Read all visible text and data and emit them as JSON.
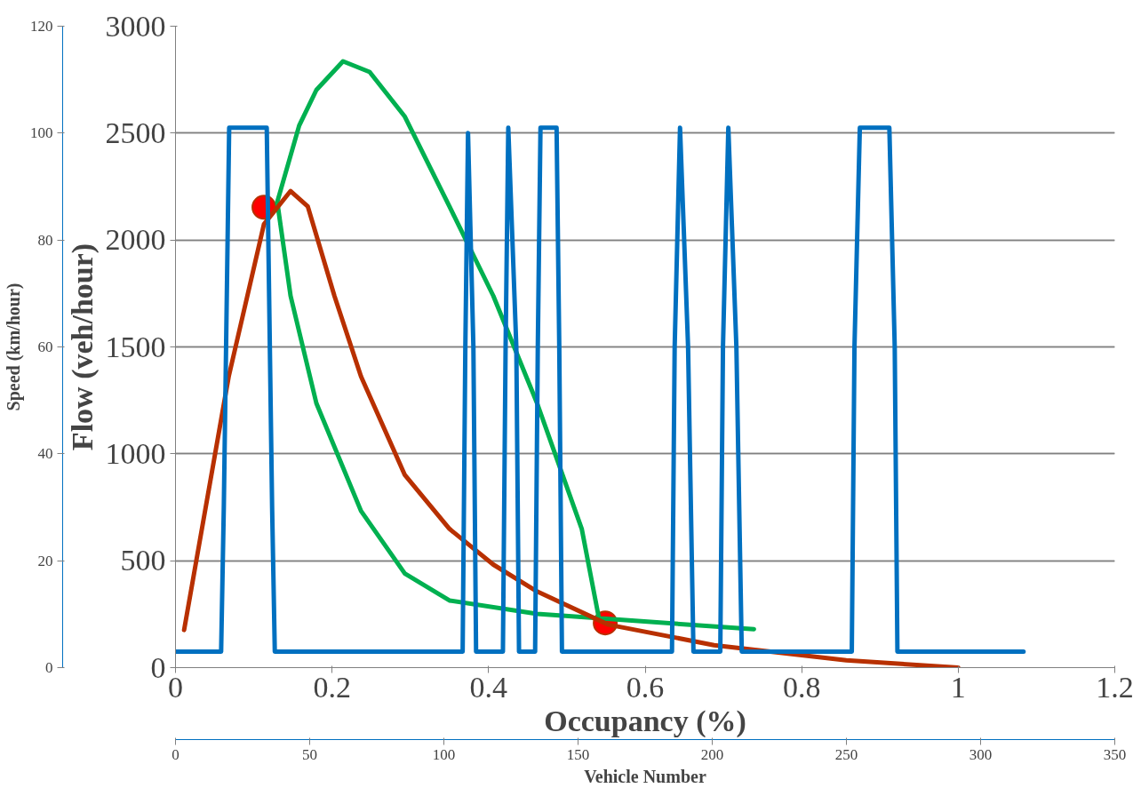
{
  "chart_data": [
    {
      "type": "line",
      "xlabel": "Occupancy (%)",
      "ylabel": "Flow (veh/hour)",
      "xlim": [
        0,
        1.2
      ],
      "ylim": [
        0,
        3000
      ],
      "xticks": [
        0,
        0.2,
        0.4,
        0.6,
        0.8,
        1,
        1.2
      ],
      "yticks": [
        0,
        500,
        1000,
        1500,
        2000,
        2500,
        3000
      ],
      "grid": "y",
      "series": [
        {
          "color": "#00b050",
          "x": [
            0.739,
            0.575,
            0.462,
            0.35,
            0.293,
            0.237,
            0.18,
            0.147,
            0.13,
            0.158,
            0.18,
            0.214,
            0.248,
            0.293,
            0.35,
            0.406,
            0.462,
            0.519,
            0.541
          ],
          "values": [
            180,
            222,
            251,
            314,
            440,
            733,
            1236,
            1739,
            2178,
            2535,
            2702,
            2836,
            2786,
            2577,
            2157,
            1739,
            1236,
            649,
            230
          ]
        },
        {
          "color": "#b83000",
          "x": [
            0.011,
            0.068,
            0.113,
            0.147,
            0.169,
            0.203,
            0.237,
            0.293,
            0.35,
            0.406,
            0.462,
            0.553,
            0.688,
            0.857,
            1.0
          ],
          "values": [
            176,
            1362,
            2074,
            2229,
            2157,
            1739,
            1362,
            901,
            649,
            482,
            356,
            201,
            105,
            34,
            0
          ]
        },
        {
          "type": "scatter",
          "marker": "circle",
          "color": "#ff0000",
          "x": [
            0.113,
            0.549
          ],
          "values": [
            2153,
            209
          ]
        }
      ]
    },
    {
      "type": "line",
      "xlabel": "Vehicle Number",
      "ylabel": "Speed (km/hour)",
      "xlim": [
        0,
        350
      ],
      "ylim": [
        0,
        120
      ],
      "xticks": [
        0,
        50,
        100,
        150,
        200,
        250,
        300,
        350
      ],
      "yticks": [
        0,
        20,
        40,
        60,
        80,
        100,
        120
      ],
      "grid": "y",
      "series": [
        {
          "color": "#0070c0",
          "x": [
            0,
            17,
            18,
            20,
            34,
            36,
            37,
            107,
            108,
            109,
            111,
            112,
            122,
            123,
            124,
            127,
            128,
            134,
            135,
            136,
            142,
            143,
            144,
            185,
            186,
            188,
            191,
            193,
            203,
            204,
            206,
            209,
            211,
            252,
            253,
            255,
            266,
            268,
            269,
            316
          ],
          "values": [
            3,
            3,
            30,
            101,
            101,
            30,
            3,
            3,
            60,
            100,
            60,
            3,
            3,
            60,
            101,
            60,
            3,
            3,
            60,
            101,
            101,
            60,
            3,
            3,
            60,
            101,
            60,
            3,
            3,
            60,
            101,
            60,
            3,
            3,
            60,
            101,
            101,
            60,
            3,
            3
          ]
        }
      ]
    }
  ]
}
